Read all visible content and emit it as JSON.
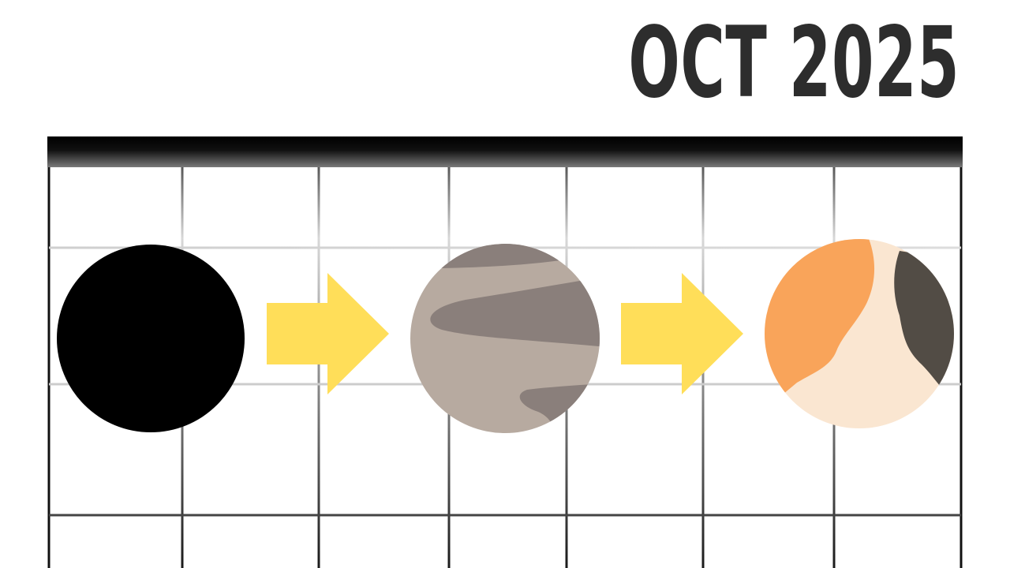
{
  "title": "OCT 2025",
  "colors": {
    "background": "#ffffff",
    "title_text": "#2d2d2d",
    "header_bar": "#000000",
    "grid_line": "#3a3a3a",
    "arrow": "#ffde59",
    "phase_1_fill": "#000000",
    "phase_2_base": "#b7aaa0",
    "phase_2_band": "#8a7f7b",
    "phase_3_base": "#fae6d1",
    "phase_3_orange": "#f9a45a",
    "phase_3_dark": "#524c45"
  },
  "icons": [
    "black-circle-icon",
    "right-arrow-icon",
    "gray-banded-planet-icon",
    "right-arrow-icon",
    "orange-cream-planet-icon"
  ]
}
